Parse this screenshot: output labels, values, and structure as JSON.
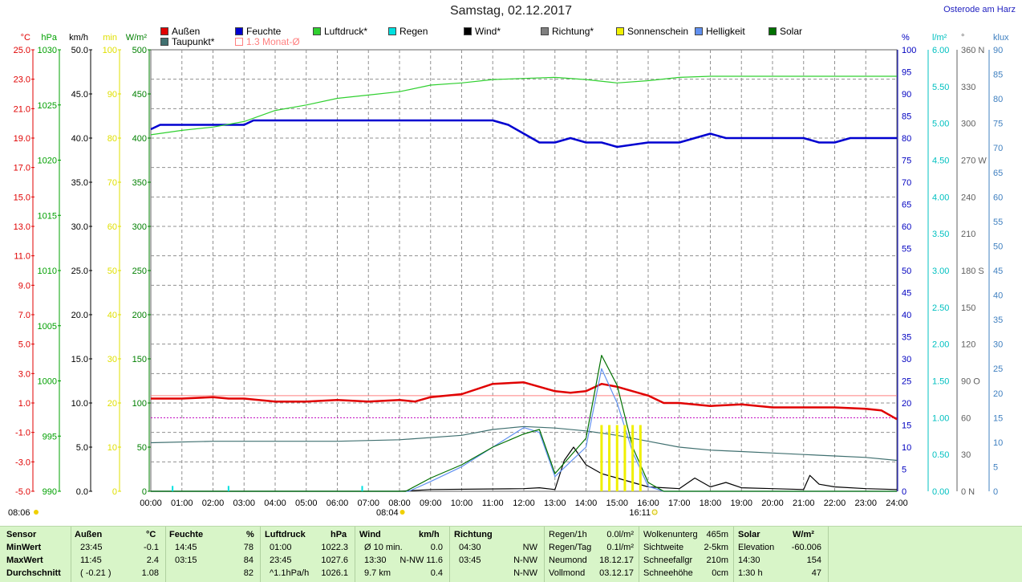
{
  "header": {
    "title": "Samstag, 02.12.2017",
    "location": "Osterode am Harz"
  },
  "legend": [
    {
      "label": "Außen",
      "color": "#e00000"
    },
    {
      "label": "Taupunkt*",
      "color": "#407070"
    },
    {
      "label": "Feuchte",
      "color": "#0000d0"
    },
    {
      "label": "1.3 Monat-Ø",
      "color": "#ff8080",
      "hollow": true
    },
    {
      "label": "Luftdruck*",
      "color": "#30d030"
    },
    {
      "label": "Regen",
      "color": "#00e0e0"
    },
    {
      "label": "Wind*",
      "color": "#000000"
    },
    {
      "label": "Richtung*",
      "color": "#808080"
    },
    {
      "label": "Sonnenschein",
      "color": "#f0f000"
    },
    {
      "label": "Helligkeit",
      "color": "#6090f0"
    },
    {
      "label": "Solar",
      "color": "#007000"
    }
  ],
  "axes_left": [
    {
      "unit": "°C",
      "color": "#e00000",
      "ticks": [
        "25.0",
        "23.0",
        "21.0",
        "19.0",
        "17.0",
        "15.0",
        "13.0",
        "11.0",
        "9.0",
        "7.0",
        "5.0",
        "3.0",
        "1.0",
        "-1.0",
        "-3.0",
        "-5.0"
      ]
    },
    {
      "unit": "hPa",
      "color": "#00a000",
      "ticks": [
        "1030",
        "1025",
        "1020",
        "1015",
        "1010",
        "1005",
        "1000",
        "995",
        "990"
      ]
    },
    {
      "unit": "km/h",
      "color": "#000000",
      "ticks": [
        "50.0",
        "45.0",
        "40.0",
        "35.0",
        "30.0",
        "25.0",
        "20.0",
        "15.0",
        "10.0",
        "5.0",
        "0.0"
      ]
    },
    {
      "unit": "min",
      "color": "#e0e000",
      "ticks": [
        "100",
        "90",
        "80",
        "70",
        "60",
        "50",
        "40",
        "30",
        "20",
        "10",
        "0"
      ]
    },
    {
      "unit": "W/m²",
      "color": "#008000",
      "ticks": [
        "500",
        "450",
        "400",
        "350",
        "300",
        "250",
        "200",
        "150",
        "100",
        "50",
        "0"
      ]
    }
  ],
  "axes_right": [
    {
      "unit": "%",
      "color": "#0000c0",
      "ticks": [
        "100",
        "95",
        "90",
        "85",
        "80",
        "75",
        "70",
        "65",
        "60",
        "55",
        "50",
        "45",
        "40",
        "35",
        "30",
        "25",
        "20",
        "15",
        "10",
        "5",
        "0"
      ]
    },
    {
      "unit": "l/m²",
      "color": "#00c0c0",
      "ticks": [
        "6.00",
        "5.50",
        "5.00",
        "4.50",
        "4.00",
        "3.50",
        "3.00",
        "2.50",
        "2.00",
        "1.50",
        "1.00",
        "0.50",
        "0.00"
      ]
    },
    {
      "unit": "°",
      "color": "#606060",
      "ticks": [
        "360 N",
        "330",
        "300",
        "270 W",
        "240",
        "210",
        "180 S",
        "150",
        "120",
        "90 O",
        "60",
        "30",
        "0 N"
      ]
    },
    {
      "unit": "klux",
      "color": "#4080c0",
      "ticks": [
        "90",
        "85",
        "80",
        "75",
        "70",
        "65",
        "60",
        "55",
        "50",
        "45",
        "40",
        "35",
        "30",
        "25",
        "20",
        "15",
        "10",
        "5",
        "0"
      ]
    }
  ],
  "time_labels": [
    "00:00",
    "01:00",
    "02:00",
    "03:00",
    "04:00",
    "05:00",
    "06:00",
    "07:00",
    "08:00",
    "09:00",
    "10:00",
    "11:00",
    "12:00",
    "13:00",
    "14:00",
    "15:00",
    "16:00",
    "17:00",
    "18:00",
    "19:00",
    "20:00",
    "21:00",
    "22:00",
    "23:00",
    "24:00"
  ],
  "sun": {
    "sunrise": "08:04",
    "sunset": "16:11",
    "left_time": "08:06"
  },
  "chart_data": {
    "type": "line",
    "title": "Samstag, 02.12.2017",
    "x_unit": "hours",
    "xlim": [
      0,
      24
    ],
    "series": [
      {
        "name": "Außen",
        "unit": "°C",
        "ylim": [
          -5,
          25
        ],
        "color": "#e00000",
        "x": [
          0,
          1,
          2,
          2.5,
          3,
          4,
          5,
          6,
          7,
          8,
          8.5,
          9,
          10,
          11,
          12,
          12.5,
          13,
          13.5,
          14,
          14.5,
          15,
          15.5,
          16,
          16.5,
          17,
          18,
          19,
          20,
          21,
          22,
          23,
          23.5,
          24
        ],
        "y": [
          1.3,
          1.3,
          1.4,
          1.3,
          1.3,
          1.1,
          1.1,
          1.2,
          1.1,
          1.2,
          1.1,
          1.4,
          1.6,
          2.3,
          2.4,
          2.1,
          1.8,
          1.7,
          1.8,
          2.3,
          2.1,
          1.8,
          1.5,
          1.0,
          1.0,
          0.8,
          0.9,
          0.7,
          0.7,
          0.7,
          0.6,
          0.5,
          -0.1
        ]
      },
      {
        "name": "Taupunkt*",
        "unit": "°C",
        "ylim": [
          -5,
          25
        ],
        "color": "#407070",
        "x": [
          0,
          2,
          4,
          6,
          8,
          10,
          11,
          12,
          13,
          14,
          15,
          16,
          17,
          18,
          19,
          20,
          21,
          22,
          23,
          24
        ],
        "y": [
          -1.7,
          -1.6,
          -1.6,
          -1.6,
          -1.5,
          -1.2,
          -0.8,
          -0.6,
          -0.7,
          -0.9,
          -1.2,
          -1.6,
          -2.0,
          -2.2,
          -2.3,
          -2.4,
          -2.5,
          -2.6,
          -2.7,
          -2.9
        ]
      },
      {
        "name": "Feuchte",
        "unit": "%",
        "ylim": [
          0,
          100
        ],
        "color": "#0000d0",
        "x": [
          0,
          0.3,
          3,
          3.3,
          11,
          11.5,
          12,
          12.5,
          13,
          13.5,
          14,
          14.5,
          15,
          16,
          17,
          17.5,
          18,
          18.5,
          19,
          20,
          21,
          21.5,
          22,
          22.5,
          23,
          24
        ],
        "y": [
          82,
          83,
          83,
          84,
          84,
          83,
          81,
          79,
          79,
          80,
          79,
          79,
          78,
          79,
          79,
          80,
          81,
          80,
          80,
          80,
          80,
          79,
          79,
          80,
          80,
          80
        ]
      },
      {
        "name": "Luftdruck*",
        "unit": "hPa",
        "ylim": [
          990,
          1030
        ],
        "color": "#30d030",
        "x": [
          0,
          1,
          2,
          3,
          4,
          5,
          6,
          7,
          8,
          9,
          10,
          11,
          12,
          13,
          14,
          15,
          16,
          17,
          18,
          19,
          20,
          21,
          22,
          23,
          24
        ],
        "y": [
          1022.3,
          1022.7,
          1023.0,
          1023.5,
          1024.5,
          1025.0,
          1025.6,
          1025.9,
          1026.2,
          1026.8,
          1027.0,
          1027.3,
          1027.4,
          1027.5,
          1027.3,
          1027.0,
          1027.2,
          1027.5,
          1027.6,
          1027.6,
          1027.6,
          1027.6,
          1027.6,
          1027.6,
          1027.6
        ]
      },
      {
        "name": "Wind*",
        "unit": "km/h",
        "ylim": [
          0,
          50
        ],
        "color": "#000000",
        "x": [
          0,
          8,
          9,
          12,
          12.5,
          13,
          13.3,
          13.6,
          14,
          14.5,
          15,
          15.5,
          16,
          17,
          17.5,
          18,
          18.5,
          19,
          20,
          21,
          21.2,
          21.5,
          22,
          23,
          24
        ],
        "y": [
          0,
          0,
          0.2,
          0.3,
          0.4,
          0.2,
          3.5,
          5.0,
          3.0,
          2.0,
          1.5,
          1.0,
          0.5,
          0.3,
          1.5,
          0.5,
          1.0,
          0.4,
          0.3,
          0.2,
          1.8,
          0.8,
          0.5,
          0.3,
          0.2
        ]
      },
      {
        "name": "Helligkeit",
        "unit": "klux",
        "ylim": [
          0,
          90
        ],
        "color": "#6090f0",
        "x": [
          0,
          8.3,
          9,
          10,
          11,
          12,
          12.5,
          13,
          13.5,
          14,
          14.5,
          15,
          15.5,
          16,
          16.5,
          24
        ],
        "y": [
          0,
          0,
          2,
          5,
          9,
          13,
          12,
          3,
          6,
          9,
          25,
          18,
          8,
          1,
          0,
          0
        ]
      },
      {
        "name": "Solar",
        "unit": "W/m²",
        "ylim": [
          0,
          500
        ],
        "color": "#007000",
        "x": [
          0,
          8.2,
          9,
          10,
          11,
          12,
          12.5,
          13,
          13.5,
          14,
          14.5,
          15,
          15.5,
          16,
          16.5,
          24
        ],
        "y": [
          0,
          0,
          15,
          30,
          50,
          65,
          70,
          20,
          40,
          60,
          154,
          120,
          50,
          10,
          0,
          0
        ]
      },
      {
        "name": "Sonnenschein",
        "unit": "min",
        "ylim": [
          0,
          100
        ],
        "color": "#f0f000",
        "x": [
          14.5,
          14.75,
          15,
          15.25,
          15.5,
          15.75
        ],
        "y": [
          15,
          15,
          15,
          15,
          15,
          15
        ]
      },
      {
        "name": "Regen",
        "unit": "l/m²",
        "ylim": [
          0,
          6
        ],
        "color": "#00e0e0",
        "x": [
          0.7,
          2.5,
          6.8
        ],
        "y": [
          0.04,
          0.04,
          0.04
        ]
      }
    ],
    "reference_lines": [
      {
        "name": "1.3 Monat-Ø",
        "unit": "°C",
        "y": 1.5,
        "color": "#ff8080"
      }
    ]
  },
  "stats": {
    "headers": {
      "sensor": "Sensor",
      "aussen": "Außen",
      "aussen_unit": "°C",
      "feuchte": "Feuchte",
      "feuchte_unit": "%",
      "luftdruck": "Luftdruck",
      "luftdruck_unit": "hPa",
      "wind": "Wind",
      "wind_unit": "km/h",
      "richtung": "Richtung",
      "solar": "Solar",
      "solar_unit": "W/m²"
    },
    "rows": [
      {
        "label": "MinWert",
        "aussen_t": "23:45",
        "aussen_v": "-0.1",
        "feuchte_t": "14:45",
        "feuchte_v": "78",
        "luft_t": "01:00",
        "luft_v": "1022.3",
        "wind_t": "Ø 10 min.",
        "wind_v": "0.0",
        "richt_t": "04:30",
        "richt_v": "NW"
      },
      {
        "label": "MaxWert",
        "aussen_t": "11:45",
        "aussen_v": "2.4",
        "feuchte_t": "03:15",
        "feuchte_v": "84",
        "luft_t": "23:45",
        "luft_v": "1027.6",
        "wind_t": "13:30",
        "wind_v": "N-NW 11.6",
        "richt_t": "03:45",
        "richt_v": "N-NW"
      },
      {
        "label": "Durchschnitt",
        "aussen_t": "( -0.21 )",
        "aussen_v": "1.08",
        "feuchte_t": "",
        "feuchte_v": "82",
        "luft_t": "^1.1hPa/h",
        "luft_v": "1026.1",
        "wind_t": "9.7 km",
        "wind_v": "0.4",
        "richt_t": "",
        "richt_v": "N-NW"
      }
    ],
    "rain": [
      {
        "k": "Regen/1h",
        "v": "0.0l/m²"
      },
      {
        "k": "Regen/Tag",
        "v": "0.1l/m²"
      },
      {
        "k": "Neumond",
        "v": "18.12.17"
      },
      {
        "k": "Vollmond",
        "v": "03.12.17"
      }
    ],
    "cloud": [
      {
        "k": "Wolkenunterg",
        "v": "465m"
      },
      {
        "k": "Sichtweite",
        "v": "2-5km"
      },
      {
        "k": "Schneefallgr",
        "v": "210m"
      },
      {
        "k": "Schneehöhe",
        "v": "0cm"
      }
    ],
    "solar": [
      {
        "k": "Elevation",
        "v": "-60.006"
      },
      {
        "k": "14:30",
        "v": "154"
      },
      {
        "k": "1:30 h",
        "v": "47"
      }
    ]
  }
}
